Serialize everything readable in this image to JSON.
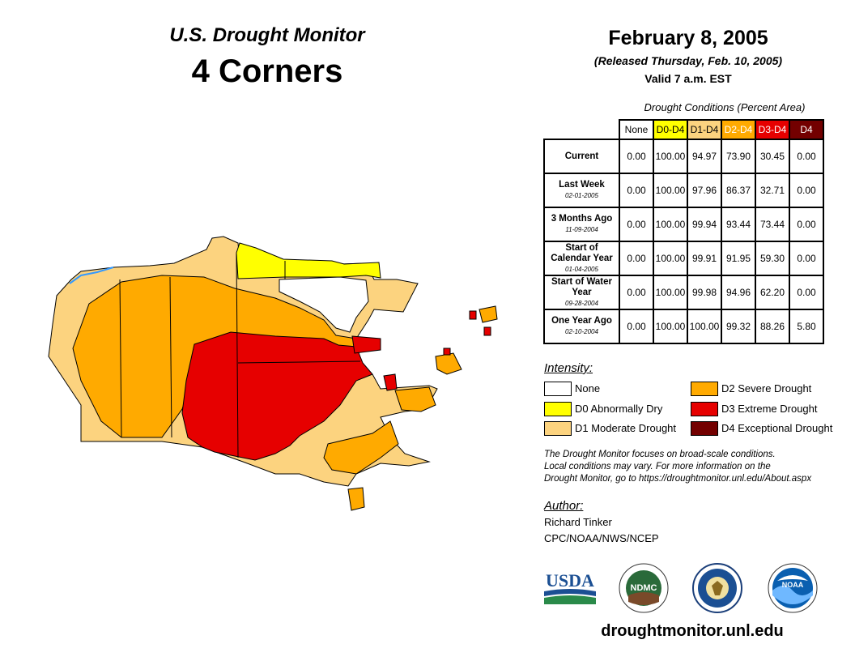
{
  "header": {
    "monitor_title": "U.S. Drought Monitor",
    "region": "4 Corners",
    "date": "February 8, 2005",
    "released": "(Released Thursday, Feb. 10, 2005)",
    "valid": "Valid 7 a.m. EST"
  },
  "table": {
    "caption": "Drought Conditions (Percent Area)",
    "columns": [
      {
        "label": "None",
        "color": "#ffffff",
        "text_color": "#000000"
      },
      {
        "label": "D0-D4",
        "color": "#ffff00",
        "text_color": "#000000"
      },
      {
        "label": "D1-D4",
        "color": "#fcd37f",
        "text_color": "#000000"
      },
      {
        "label": "D2-D4",
        "color": "#ffaa00",
        "text_color": "#ffffff"
      },
      {
        "label": "D3-D4",
        "color": "#e60000",
        "text_color": "#ffffff"
      },
      {
        "label": "D4",
        "color": "#730000",
        "text_color": "#ffffff"
      }
    ],
    "rows": [
      {
        "label": "Current",
        "date": "",
        "values": [
          "0.00",
          "100.00",
          "94.97",
          "73.90",
          "30.45",
          "0.00"
        ]
      },
      {
        "label": "Last Week",
        "date": "02-01-2005",
        "values": [
          "0.00",
          "100.00",
          "97.96",
          "86.37",
          "32.71",
          "0.00"
        ]
      },
      {
        "label": "3 Months Ago",
        "date": "11-09-2004",
        "values": [
          "0.00",
          "100.00",
          "99.94",
          "93.44",
          "73.44",
          "0.00"
        ]
      },
      {
        "label": "Start of Calendar Year",
        "date": "01-04-2005",
        "values": [
          "0.00",
          "100.00",
          "99.91",
          "91.95",
          "59.30",
          "0.00"
        ]
      },
      {
        "label": "Start of Water Year",
        "date": "09-28-2004",
        "values": [
          "0.00",
          "100.00",
          "99.98",
          "94.96",
          "62.20",
          "0.00"
        ]
      },
      {
        "label": "One Year Ago",
        "date": "02-10-2004",
        "values": [
          "0.00",
          "100.00",
          "100.00",
          "99.32",
          "88.26",
          "5.80"
        ]
      }
    ]
  },
  "legend": {
    "title": "Intensity:",
    "items": [
      {
        "label": "None",
        "color": "#ffffff"
      },
      {
        "label": "D0 Abnormally Dry",
        "color": "#ffff00"
      },
      {
        "label": "D1 Moderate Drought",
        "color": "#fcd37f"
      },
      {
        "label": "D2 Severe Drought",
        "color": "#ffaa00"
      },
      {
        "label": "D3 Extreme Drought",
        "color": "#e60000"
      },
      {
        "label": "D4 Exceptional Drought",
        "color": "#730000"
      }
    ]
  },
  "note": {
    "line1": "The Drought Monitor focuses on broad-scale conditions.",
    "line2": "Local conditions may vary. For more information on the",
    "line3": "Drought Monitor, go to https://droughtmonitor.unl.edu/About.aspx"
  },
  "author": {
    "title": "Author:",
    "name": "Richard Tinker",
    "org": "CPC/NOAA/NWS/NCEP"
  },
  "logos": {
    "usda": "USDA",
    "ndmc": "NDMC",
    "noaa": "NOAA"
  },
  "website": "droughtmonitor.unl.edu"
}
